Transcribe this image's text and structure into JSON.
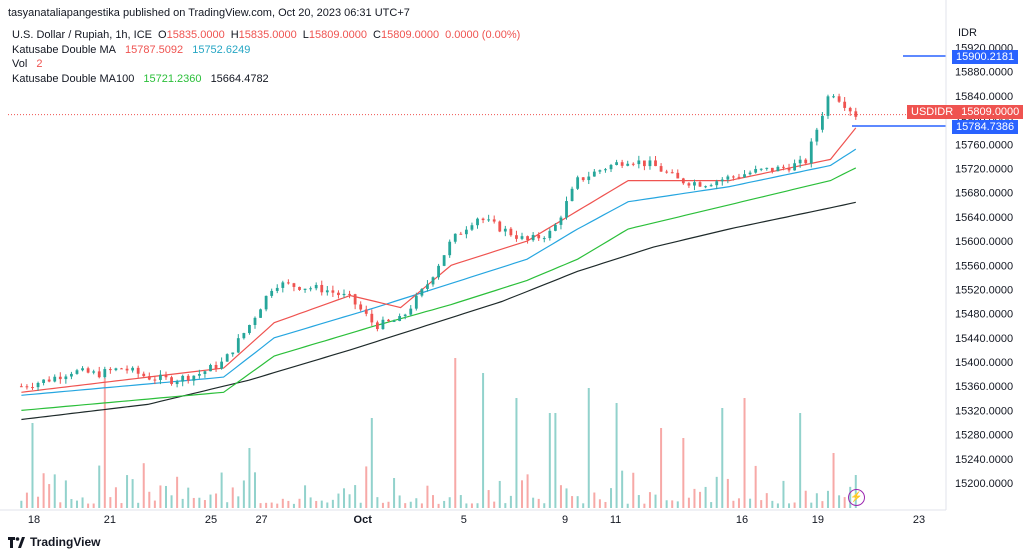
{
  "header": {
    "publisher_line": "tasyanataliapangestika published on TradingView.com, Oct 20, 2023 06:31 UTC+7"
  },
  "legend": {
    "symbol": "U.S. Dollar / Rupiah, 1h, ICE",
    "o_label": "O",
    "o_value": "15835.0000",
    "h_label": "H",
    "h_value": "15835.0000",
    "l_label": "L",
    "l_value": "15809.0000",
    "c_label": "C",
    "c_value": "15809.0000",
    "change": "0.0000 (0.00%)",
    "ma1_name": "Katusabe Double MA",
    "ma1_v1": "15787.5092",
    "ma1_v2": "15752.6249",
    "vol_name": "Vol",
    "vol_value": "2",
    "ma2_name": "Katusabe Double MA100",
    "ma2_v1": "15721.2360",
    "ma2_v2": "15664.4782"
  },
  "price_axis": {
    "currency": "IDR",
    "tag_top": "15900.2181",
    "tag_symbol": "USDIDR",
    "tag_current": "15809.0000",
    "tag_ma": "15784.7386"
  },
  "footer": {
    "brand": "TradingView"
  },
  "colors": {
    "up": "#26a69a",
    "down": "#ef5350",
    "ma_fast": "#ef5350",
    "ma_mid": "#26a6e0",
    "ma_slow": "#2bbf3a",
    "ma_100": "#1e2a2a",
    "tag": "#2962ff"
  },
  "chart_data": {
    "type": "candlestick",
    "y_ticks": [
      15200,
      15240,
      15280,
      15320,
      15360,
      15400,
      15440,
      15480,
      15520,
      15560,
      15600,
      15640,
      15680,
      15720,
      15760,
      15800,
      15840,
      15880,
      15920
    ],
    "y_tick_labels": [
      "15200.0000",
      "15240.0000",
      "15280.0000",
      "15320.0000",
      "15360.0000",
      "15400.0000",
      "15440.0000",
      "15480.0000",
      "15520.0000",
      "15560.0000",
      "15600.0000",
      "15640.0000",
      "15680.0000",
      "15720.0000",
      "15760.0000",
      "15800.0000",
      "15840.0000",
      "15880.0000",
      "15920.0000"
    ],
    "x_tick_labels": [
      "18",
      "21",
      "25",
      "27",
      "Oct",
      "5",
      "9",
      "11",
      "16",
      "19",
      "23"
    ],
    "x_tick_days": [
      0,
      3,
      7,
      9,
      13,
      17,
      21,
      23,
      28,
      31,
      35
    ],
    "price_path": [
      [
        0,
        15360
      ],
      [
        1,
        15370
      ],
      [
        2,
        15385
      ],
      [
        3,
        15380
      ],
      [
        4,
        15390
      ],
      [
        5,
        15375
      ],
      [
        6,
        15370
      ],
      [
        7,
        15380
      ],
      [
        8,
        15400
      ],
      [
        9,
        15460
      ],
      [
        10,
        15530
      ],
      [
        11,
        15525
      ],
      [
        12,
        15520
      ],
      [
        13,
        15505
      ],
      [
        14,
        15460
      ],
      [
        15,
        15470
      ],
      [
        16,
        15525
      ],
      [
        17,
        15600
      ],
      [
        18,
        15640
      ],
      [
        19,
        15620
      ],
      [
        20,
        15600
      ],
      [
        21,
        15615
      ],
      [
        22,
        15700
      ],
      [
        23,
        15720
      ],
      [
        24,
        15735
      ],
      [
        25,
        15725
      ],
      [
        26,
        15700
      ],
      [
        27,
        15695
      ],
      [
        28,
        15705
      ],
      [
        29,
        15715
      ],
      [
        30,
        15720
      ],
      [
        31,
        15730
      ],
      [
        32,
        15850
      ],
      [
        33,
        15809
      ]
    ],
    "ma_fast_path": [
      [
        0,
        15350
      ],
      [
        8,
        15390
      ],
      [
        10,
        15465
      ],
      [
        13,
        15510
      ],
      [
        15,
        15490
      ],
      [
        17,
        15560
      ],
      [
        20,
        15600
      ],
      [
        22,
        15650
      ],
      [
        24,
        15700
      ],
      [
        28,
        15700
      ],
      [
        32,
        15735
      ],
      [
        33,
        15787
      ]
    ],
    "ma_mid_path": [
      [
        0,
        15345
      ],
      [
        8,
        15375
      ],
      [
        10,
        15440
      ],
      [
        14,
        15490
      ],
      [
        17,
        15530
      ],
      [
        20,
        15570
      ],
      [
        22,
        15620
      ],
      [
        24,
        15665
      ],
      [
        28,
        15690
      ],
      [
        32,
        15725
      ],
      [
        33,
        15752
      ]
    ],
    "ma_slow_path": [
      [
        0,
        15320
      ],
      [
        8,
        15350
      ],
      [
        10,
        15410
      ],
      [
        14,
        15460
      ],
      [
        17,
        15495
      ],
      [
        20,
        15535
      ],
      [
        22,
        15570
      ],
      [
        24,
        15620
      ],
      [
        28,
        15660
      ],
      [
        32,
        15700
      ],
      [
        33,
        15721
      ]
    ],
    "ma_100_path": [
      [
        0,
        15305
      ],
      [
        5,
        15330
      ],
      [
        9,
        15370
      ],
      [
        13,
        15420
      ],
      [
        16,
        15460
      ],
      [
        19,
        15500
      ],
      [
        22,
        15550
      ],
      [
        25,
        15590
      ],
      [
        28,
        15620
      ],
      [
        32,
        15655
      ],
      [
        33,
        15664
      ]
    ],
    "volume_peaks": [
      [
        0.5,
        85
      ],
      [
        3.4,
        130
      ],
      [
        9,
        60
      ],
      [
        13.9,
        90
      ],
      [
        17.2,
        150
      ],
      [
        18.2,
        135
      ],
      [
        19.5,
        110
      ],
      [
        21,
        95
      ],
      [
        22.4,
        120
      ],
      [
        23.5,
        105
      ],
      [
        25.2,
        80
      ],
      [
        26.2,
        70
      ],
      [
        27.7,
        100
      ],
      [
        28.6,
        110
      ],
      [
        30.8,
        95
      ],
      [
        32.2,
        55
      ]
    ]
  }
}
